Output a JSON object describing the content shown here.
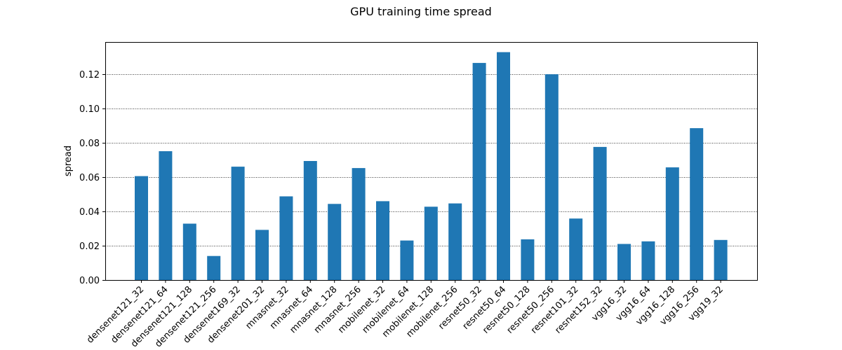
{
  "chart_data": {
    "type": "bar",
    "title": "GPU training time spread",
    "xlabel": "",
    "ylabel": "spread",
    "ylim": [
      0,
      0.1386
    ],
    "yticks": [
      "0.00",
      "0.02",
      "0.04",
      "0.06",
      "0.08",
      "0.10",
      "0.12"
    ],
    "grid": "horizontal dotted",
    "bar_color": "#1f77b4",
    "categories": [
      "densenet121_32",
      "densenet121_64",
      "densenet121_128",
      "densenet121_256",
      "densenet169_32",
      "densenet201_32",
      "mnasnet_32",
      "mnasnet_64",
      "mnasnet_128",
      "mnasnet_256",
      "mobilenet_32",
      "mobilenet_64",
      "mobilenet_128",
      "mobilenet_256",
      "resnet50_32",
      "resnet50_64",
      "resnet50_128",
      "resnet50_256",
      "resnet101_32",
      "resnet152_32",
      "vgg16_32",
      "vgg16_64",
      "vgg16_128",
      "vgg16_256",
      "vgg19_32"
    ],
    "values": [
      0.0605,
      0.075,
      0.0328,
      0.014,
      0.066,
      0.0292,
      0.0487,
      0.0693,
      0.0443,
      0.0652,
      0.0459,
      0.023,
      0.0427,
      0.0446,
      0.1264,
      0.1327,
      0.0237,
      0.1198,
      0.0358,
      0.0775,
      0.021,
      0.0225,
      0.0656,
      0.0884,
      0.0233
    ]
  }
}
